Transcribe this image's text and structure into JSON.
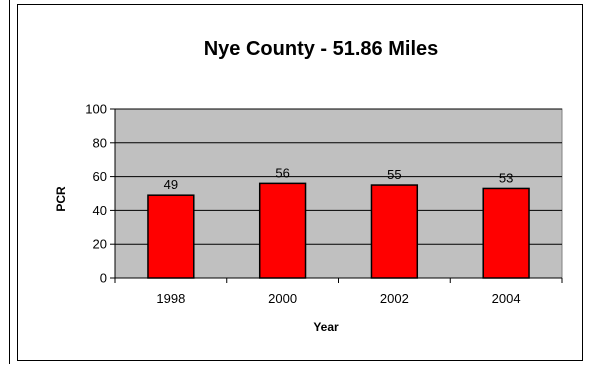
{
  "chart_data": {
    "type": "bar",
    "title": "Nye County - 51.86 Miles",
    "xlabel": "Year",
    "ylabel": "PCR",
    "categories": [
      "1998",
      "2000",
      "2002",
      "2004"
    ],
    "values": [
      49,
      56,
      55,
      53
    ],
    "data_labels": [
      "49",
      "56",
      "55",
      "53"
    ],
    "ylim": [
      0,
      100
    ],
    "yticks": [
      0,
      20,
      40,
      60,
      80,
      100
    ],
    "grid": true,
    "legend": "none",
    "colors": {
      "bar": "#ff0000",
      "plot_background": "#c0c0c0",
      "gridline": "#000000"
    }
  }
}
